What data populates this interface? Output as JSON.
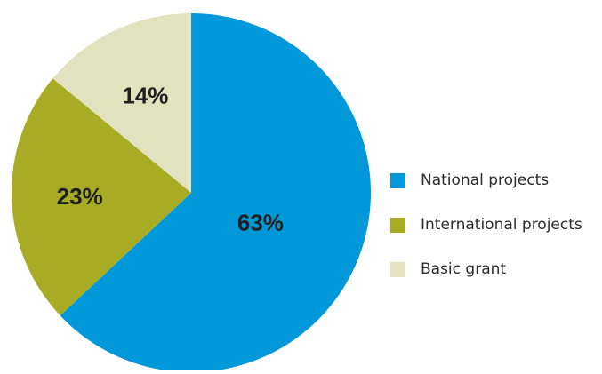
{
  "chart_data": {
    "type": "pie",
    "title": "",
    "series": [
      {
        "name": "National projects",
        "value": 63,
        "label": "63%",
        "color": "#0098d8"
      },
      {
        "name": "International projects",
        "value": 23,
        "label": "23%",
        "color": "#a8ac24"
      },
      {
        "name": "Basic grant",
        "value": 14,
        "label": "14%",
        "color": "#e2e2bf"
      }
    ],
    "legend_position": "right",
    "start_angle": "top, clockwise"
  }
}
